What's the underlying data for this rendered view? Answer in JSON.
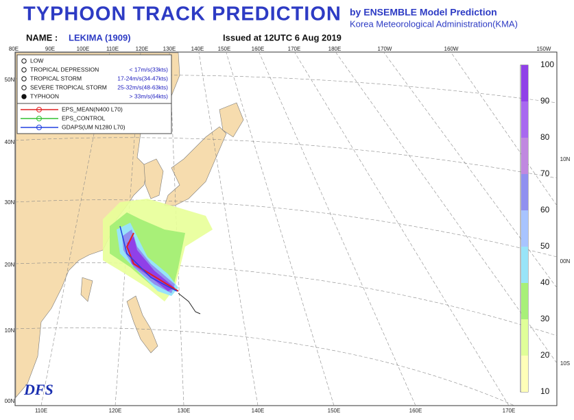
{
  "header": {
    "title": "TYPHOON TRACK PREDICTION",
    "source_line1": "by ENSEMBLE Model Prediction",
    "source_line2": "Korea Meteorological Administration(KMA)",
    "name_label": "NAME :",
    "name_value": "LEKIMA (1909)",
    "issued": "Issued at 12UTC  6 Aug 2019"
  },
  "legend": {
    "intensity": [
      {
        "label": "LOW",
        "speed": null
      },
      {
        "label": "TROPICAL DEPRESSION",
        "speed": "< 17m/s(33kts)"
      },
      {
        "label": "TROPICAL STORM",
        "speed": "17-24m/s(34-47kts)"
      },
      {
        "label": "SEVERE TROPICAL STORM",
        "speed": "25-32m/s(48-63kts)"
      },
      {
        "label": "TYPHOON",
        "speed": "> 33m/s(64kts)"
      }
    ],
    "models": [
      {
        "label": "EPS_MEAN(N400 L70)",
        "color": "#e02020"
      },
      {
        "label": "EPS_CONTROL",
        "color": "#30c030"
      },
      {
        "label": "GDAPS(UM N1280 L70)",
        "color": "#2040e0"
      }
    ]
  },
  "map": {
    "top_labels": [
      "80E",
      "90E",
      "100E",
      "110E",
      "120E",
      "130E",
      "140E",
      "150E",
      "160E",
      "170E",
      "180E",
      "170W",
      "160W",
      "150W"
    ],
    "left_labels": [
      "50N",
      "40N",
      "30N",
      "20N",
      "10N",
      "00N"
    ],
    "bottom_labels": [
      "110E",
      "120E",
      "130E",
      "140E",
      "150E",
      "160E",
      "170E"
    ],
    "right_labels": [
      "10N",
      "00N",
      "10S"
    ]
  },
  "colorbar": {
    "ticks": [
      "100",
      "90",
      "80",
      "70",
      "60",
      "50",
      "40",
      "30",
      "20",
      "10"
    ],
    "colors": [
      "#9040e8",
      "#a868f0",
      "#c088e0",
      "#9090f0",
      "#a8c4ff",
      "#98e4f8",
      "#a8f078",
      "#e0ff98",
      "#ffffb8"
    ]
  },
  "logo": "DFS"
}
